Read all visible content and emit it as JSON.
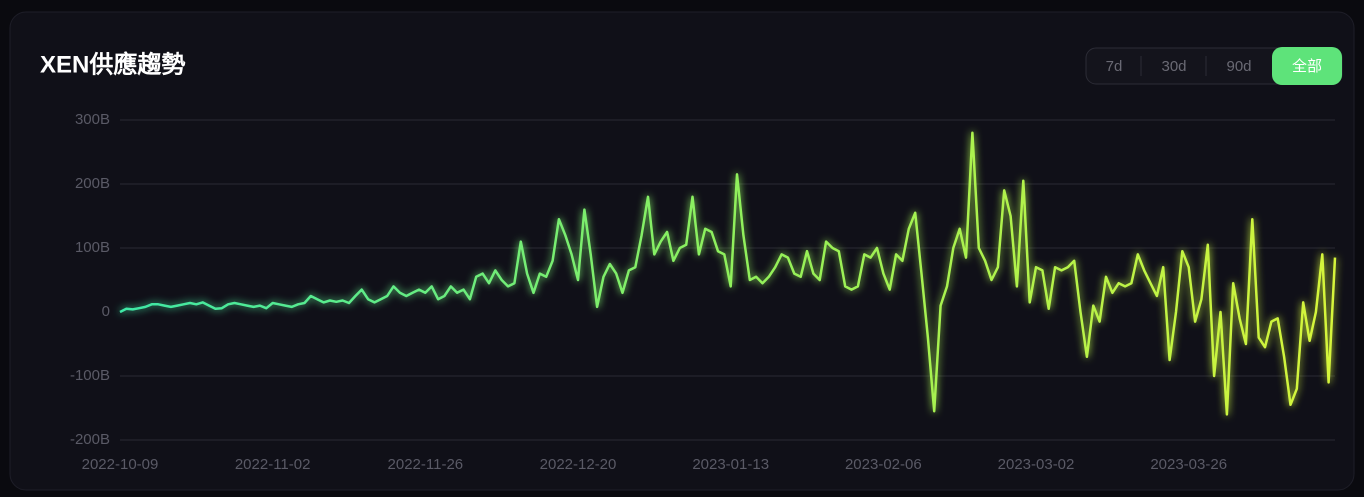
{
  "chart_data": {
    "type": "line",
    "title": "XEN供應趨勢",
    "controls": [
      "7d",
      "30d",
      "90d",
      "全部"
    ],
    "x": [
      "2022-10-09",
      "2022-10-10",
      "2022-10-11",
      "2022-10-12",
      "2022-10-13",
      "2022-10-14",
      "2022-10-15",
      "2022-10-16",
      "2022-10-17",
      "2022-10-18",
      "2022-10-19",
      "2022-10-20",
      "2022-10-21",
      "2022-10-22",
      "2022-10-23",
      "2022-10-24",
      "2022-10-25",
      "2022-10-26",
      "2022-10-27",
      "2022-10-28",
      "2022-10-29",
      "2022-10-30",
      "2022-10-31",
      "2022-11-01",
      "2022-11-02",
      "2022-11-03",
      "2022-11-04",
      "2022-11-05",
      "2022-11-06",
      "2022-11-07",
      "2022-11-08",
      "2022-11-09",
      "2022-11-10",
      "2022-11-11",
      "2022-11-12",
      "2022-11-13",
      "2022-11-14",
      "2022-11-15",
      "2022-11-16",
      "2022-11-17",
      "2022-11-18",
      "2022-11-19",
      "2022-11-20",
      "2022-11-21",
      "2022-11-22",
      "2022-11-23",
      "2022-11-24",
      "2022-11-25",
      "2022-11-26",
      "2022-11-27",
      "2022-11-28",
      "2022-11-29",
      "2022-11-30",
      "2022-12-01",
      "2022-12-02",
      "2022-12-03",
      "2022-12-04",
      "2022-12-05",
      "2022-12-06",
      "2022-12-07",
      "2022-12-08",
      "2022-12-09",
      "2022-12-10",
      "2022-12-11",
      "2022-12-12",
      "2022-12-13",
      "2022-12-14",
      "2022-12-15",
      "2022-12-16",
      "2022-12-17",
      "2022-12-18",
      "2022-12-19",
      "2022-12-20",
      "2022-12-21",
      "2022-12-22",
      "2022-12-23",
      "2022-12-24",
      "2022-12-25",
      "2022-12-26",
      "2022-12-27",
      "2022-12-28",
      "2022-12-29",
      "2022-12-30",
      "2022-12-31",
      "2023-01-01",
      "2023-01-02",
      "2023-01-03",
      "2023-01-04",
      "2023-01-05",
      "2023-01-06",
      "2023-01-07",
      "2023-01-08",
      "2023-01-09",
      "2023-01-10",
      "2023-01-11",
      "2023-01-12",
      "2023-01-13",
      "2023-01-14",
      "2023-01-15",
      "2023-01-16",
      "2023-01-17",
      "2023-01-18",
      "2023-01-19",
      "2023-01-20",
      "2023-01-21",
      "2023-01-22",
      "2023-01-23",
      "2023-01-24",
      "2023-01-25",
      "2023-01-26",
      "2023-01-27",
      "2023-01-28",
      "2023-01-29",
      "2023-01-30",
      "2023-01-31",
      "2023-02-01",
      "2023-02-02",
      "2023-02-03",
      "2023-02-04",
      "2023-02-05",
      "2023-02-06",
      "2023-02-07",
      "2023-02-08",
      "2023-02-09",
      "2023-02-10",
      "2023-02-11",
      "2023-02-12",
      "2023-02-13",
      "2023-02-14",
      "2023-02-15",
      "2023-02-16",
      "2023-02-17",
      "2023-02-18",
      "2023-02-19",
      "2023-02-20",
      "2023-02-21",
      "2023-02-22",
      "2023-02-23",
      "2023-02-24",
      "2023-02-25",
      "2023-02-26",
      "2023-02-27",
      "2023-02-28",
      "2023-03-01",
      "2023-03-02",
      "2023-03-03",
      "2023-03-04",
      "2023-03-05",
      "2023-03-06",
      "2023-03-07",
      "2023-03-08",
      "2023-03-09",
      "2023-03-10",
      "2023-03-11",
      "2023-03-12",
      "2023-03-13",
      "2023-03-14",
      "2023-03-15",
      "2023-03-16",
      "2023-03-17",
      "2023-03-18",
      "2023-03-19",
      "2023-03-20",
      "2023-03-21",
      "2023-03-22",
      "2023-03-23",
      "2023-03-24",
      "2023-03-25",
      "2023-03-26",
      "2023-03-27",
      "2023-03-28",
      "2023-03-29",
      "2023-03-30",
      "2023-03-31",
      "2023-04-01",
      "2023-04-02",
      "2023-04-03",
      "2023-04-04",
      "2023-04-05",
      "2023-04-06",
      "2023-04-07",
      "2023-04-08",
      "2023-04-09",
      "2023-04-10",
      "2023-04-11",
      "2023-04-12",
      "2023-04-13",
      "2023-04-14",
      "2023-04-15",
      "2023-04-16",
      "2023-04-17",
      "2023-04-18"
    ],
    "values": [
      0,
      5,
      4,
      6,
      8,
      12,
      12,
      10,
      8,
      10,
      12,
      14,
      12,
      15,
      10,
      5,
      6,
      12,
      14,
      12,
      10,
      8,
      10,
      6,
      14,
      12,
      10,
      8,
      12,
      14,
      25,
      20,
      15,
      18,
      16,
      18,
      14,
      25,
      35,
      20,
      15,
      20,
      25,
      40,
      30,
      25,
      30,
      35,
      30,
      40,
      20,
      25,
      40,
      30,
      35,
      20,
      55,
      60,
      45,
      65,
      50,
      40,
      45,
      110,
      60,
      30,
      60,
      55,
      80,
      145,
      120,
      90,
      50,
      160,
      90,
      8,
      55,
      75,
      60,
      30,
      65,
      70,
      120,
      180,
      90,
      110,
      125,
      80,
      100,
      105,
      180,
      90,
      130,
      125,
      95,
      90,
      40,
      215,
      120,
      50,
      55,
      45,
      55,
      70,
      90,
      85,
      60,
      55,
      95,
      60,
      50,
      110,
      100,
      95,
      40,
      35,
      40,
      90,
      85,
      100,
      60,
      35,
      90,
      80,
      130,
      155,
      60,
      -40,
      -155,
      10,
      40,
      100,
      130,
      85,
      280,
      100,
      80,
      50,
      70,
      190,
      150,
      40,
      205,
      15,
      70,
      65,
      5,
      70,
      65,
      70,
      80,
      0,
      -70,
      10,
      -15,
      55,
      30,
      45,
      40,
      45,
      90,
      65,
      45,
      25,
      70,
      -75,
      0,
      95,
      70,
      -15,
      20,
      105,
      -100,
      0,
      -160,
      45,
      -10,
      -50,
      145,
      -40,
      -55,
      -15,
      -10,
      -70,
      -145,
      -120,
      15,
      -45,
      0,
      90,
      -110,
      85
    ],
    "colors": [
      "#3ee8a6",
      "#8ff05c",
      "#d6f53a"
    ],
    "xlim": [
      "2022-10-09",
      "2023-04-18"
    ],
    "xticks": [
      "2022-10-09",
      "2022-11-02",
      "2022-11-26",
      "2022-12-20",
      "2023-01-13",
      "2023-02-06",
      "2023-03-02",
      "2023-03-26"
    ],
    "ylim": [
      -200,
      300
    ],
    "yticks": [
      {
        "value": -200,
        "label": "-200B"
      },
      {
        "value": -100,
        "label": "-100B"
      },
      0,
      {
        "value": 100,
        "label": "100B"
      },
      {
        "value": 200,
        "label": "200B"
      },
      {
        "value": 300,
        "label": "300B"
      }
    ],
    "grid": true
  }
}
